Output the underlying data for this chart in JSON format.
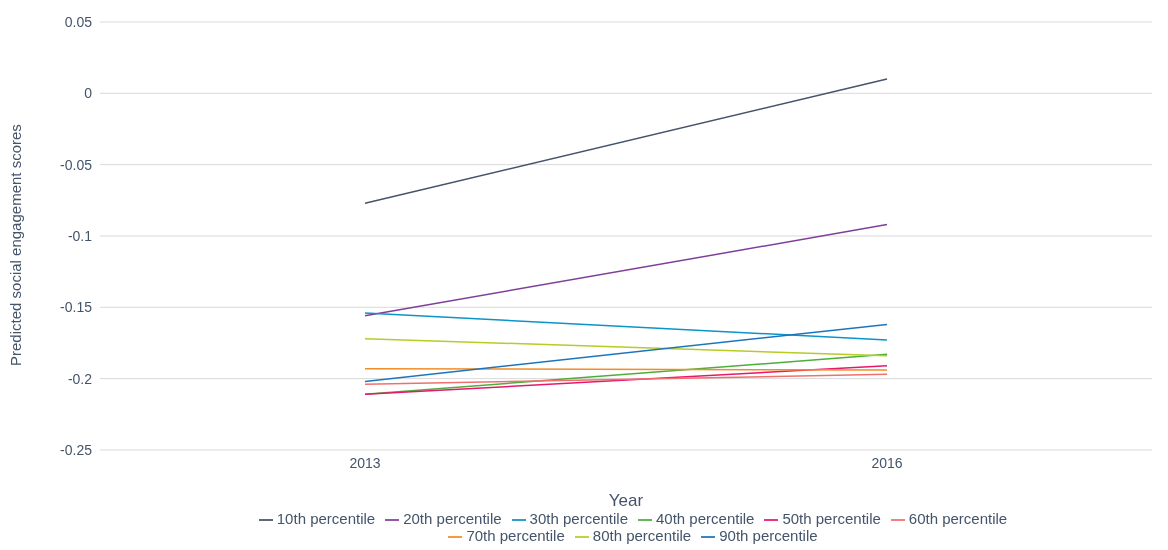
{
  "chart_data": {
    "type": "line",
    "xlabel": "Year",
    "ylabel": "Predicted social engagement scores",
    "categories": [
      "2013",
      "2016"
    ],
    "series": [
      {
        "name": "10th percentile",
        "color": "#44546a",
        "values": [
          -0.077,
          0.01
        ]
      },
      {
        "name": "20th percentile",
        "color": "#7f3f98",
        "values": [
          -0.156,
          -0.092
        ]
      },
      {
        "name": "30th percentile",
        "color": "#0a94c8",
        "values": [
          -0.154,
          -0.173
        ]
      },
      {
        "name": "40th percentile",
        "color": "#4cae3c",
        "values": [
          -0.211,
          -0.183
        ]
      },
      {
        "name": "50th percentile",
        "color": "#e6186b",
        "values": [
          -0.211,
          -0.191
        ]
      },
      {
        "name": "60th percentile",
        "color": "#f07070",
        "values": [
          -0.204,
          -0.197
        ]
      },
      {
        "name": "70th percentile",
        "color": "#f28c28",
        "values": [
          -0.193,
          -0.194
        ]
      },
      {
        "name": "80th percentile",
        "color": "#b8cc24",
        "values": [
          -0.172,
          -0.184
        ]
      },
      {
        "name": "90th percentile",
        "color": "#1c75bc",
        "values": [
          -0.202,
          -0.162
        ]
      }
    ],
    "ylim": [
      -0.25,
      0.05
    ],
    "yticks": [
      -0.25,
      -0.2,
      -0.15,
      -0.1,
      -0.05,
      0,
      0.05
    ],
    "grid": "y",
    "legend": "bottom",
    "marker": "none",
    "line_style": "solid"
  }
}
